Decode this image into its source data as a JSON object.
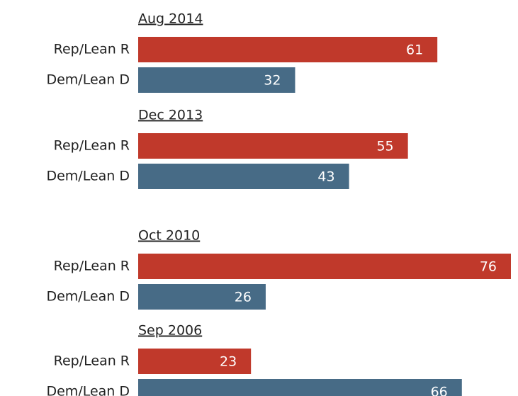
{
  "chart_data": {
    "type": "bar",
    "orientation": "horizontal",
    "categories": [
      "Aug 2014",
      "Dec 2013",
      "Oct 2010",
      "Sep 2006"
    ],
    "series": [
      {
        "name": "Rep/Lean R",
        "color": "#c0392b",
        "values": [
          61,
          55,
          76,
          23
        ]
      },
      {
        "name": "Dem/Lean D",
        "color": "#476b86",
        "values": [
          32,
          43,
          26,
          66
        ]
      }
    ]
  }
}
